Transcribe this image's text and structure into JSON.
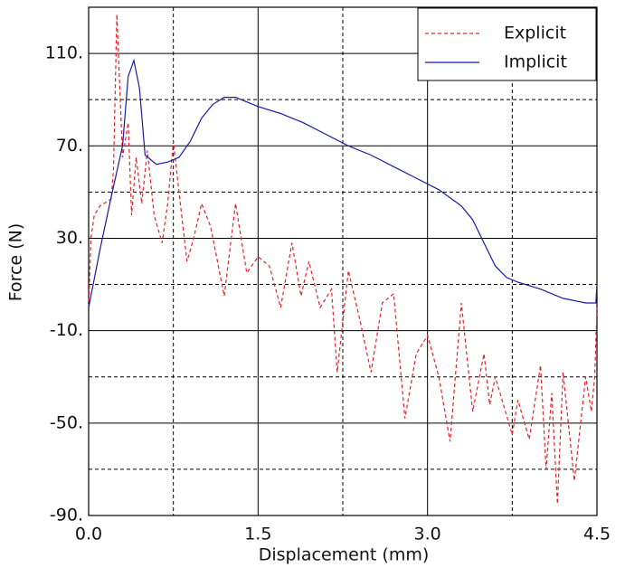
{
  "chart_data": {
    "type": "line",
    "xlabel": "Displacement (mm)",
    "ylabel": "Force (N)",
    "xlim": [
      0,
      4.5
    ],
    "ylim": [
      -90,
      130
    ],
    "xticks": [
      {
        "value": 0,
        "label": "0.0"
      },
      {
        "value": 1.5,
        "label": "1.5"
      },
      {
        "value": 3,
        "label": "3.0"
      },
      {
        "value": 4.5,
        "label": "4.5"
      }
    ],
    "yticks": [
      {
        "value": -90,
        "label": "-90."
      },
      {
        "value": -50,
        "label": "-50."
      },
      {
        "value": -10,
        "label": "-10."
      },
      {
        "value": 30,
        "label": "30."
      },
      {
        "value": 70,
        "label": "70."
      },
      {
        "value": 110,
        "label": "110."
      }
    ],
    "xminor_ticks": [
      0.75,
      2.25,
      3.75
    ],
    "yminor_ticks": [
      -70,
      -30,
      10,
      50,
      90
    ],
    "grid": true,
    "legend": "upper right",
    "series": [
      {
        "name": "Explicit",
        "color": "#e8202a",
        "dashed": true,
        "x": [
          0,
          0.02,
          0.05,
          0.1,
          0.2,
          0.22,
          0.25,
          0.3,
          0.35,
          0.38,
          0.42,
          0.47,
          0.52,
          0.58,
          0.65,
          0.7,
          0.75,
          0.8,
          0.87,
          0.93,
          1.0,
          1.08,
          1.2,
          1.3,
          1.4,
          1.5,
          1.6,
          1.7,
          1.8,
          1.88,
          1.95,
          2.05,
          2.15,
          2.2,
          2.3,
          2.4,
          2.5,
          2.6,
          2.7,
          2.8,
          2.9,
          3.0,
          3.1,
          3.2,
          3.3,
          3.4,
          3.5,
          3.55,
          3.6,
          3.75,
          3.8,
          3.9,
          4.0,
          4.05,
          4.1,
          4.15,
          4.2,
          4.3,
          4.4,
          4.45,
          4.48,
          4.5
        ],
        "values": [
          0,
          30,
          40,
          44,
          47,
          60,
          127,
          65,
          80,
          40,
          65,
          45,
          68,
          40,
          28,
          45,
          72,
          50,
          20,
          30,
          45,
          35,
          5,
          45,
          15,
          22,
          18,
          0,
          28,
          5,
          20,
          0,
          8,
          -28,
          16,
          -5,
          -28,
          2,
          6,
          -48,
          -20,
          -12,
          -30,
          -58,
          2,
          -45,
          -20,
          -42,
          -30,
          -55,
          -40,
          -57,
          -25,
          -70,
          -37,
          -85,
          -28,
          -75,
          -30,
          -45,
          -30,
          0
        ]
      },
      {
        "name": "Implicit",
        "color": "#1a1aa8",
        "dashed": false,
        "x": [
          0,
          0.1,
          0.2,
          0.3,
          0.35,
          0.4,
          0.45,
          0.5,
          0.6,
          0.7,
          0.8,
          0.9,
          1.0,
          1.1,
          1.2,
          1.3,
          1.4,
          1.5,
          1.7,
          1.9,
          2.1,
          2.3,
          2.5,
          2.7,
          2.9,
          3.1,
          3.3,
          3.4,
          3.5,
          3.6,
          3.7,
          3.8,
          4.0,
          4.2,
          4.4,
          4.49,
          4.5
        ],
        "values": [
          0,
          25,
          48,
          70,
          100,
          107,
          95,
          66,
          62,
          63,
          65,
          72,
          82,
          88,
          91,
          91,
          89,
          87,
          84,
          80,
          75,
          70,
          66,
          61,
          56,
          51,
          44,
          38,
          28,
          18,
          13,
          11,
          8,
          4,
          2,
          2,
          10
        ]
      }
    ]
  }
}
